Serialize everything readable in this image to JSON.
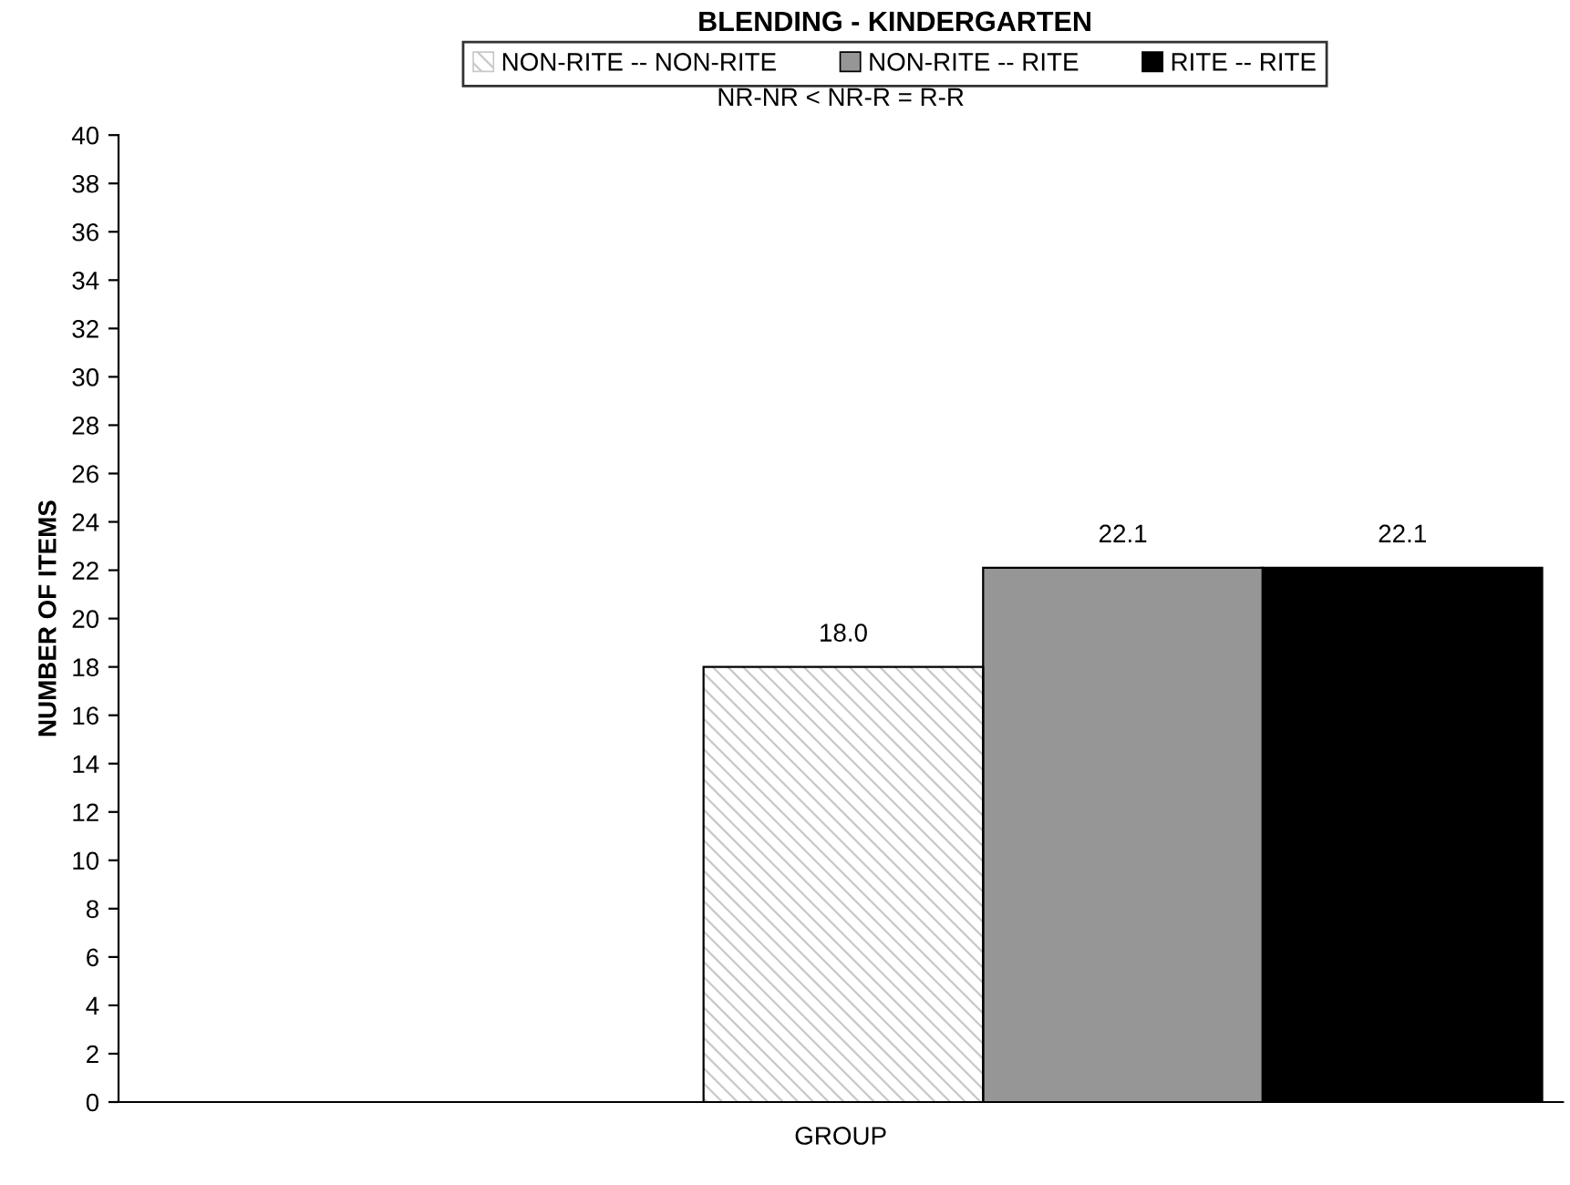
{
  "chart_data": {
    "type": "bar",
    "title": "BLENDING - KINDERGARTEN",
    "xlabel": "GROUP",
    "ylabel": "NUMBER OF ITEMS",
    "categories": [
      null
    ],
    "series": [
      {
        "name": "NON-RITE -- NON-RITE",
        "color": "#ffffff",
        "values": [
          18.0
        ]
      },
      {
        "name": "NON-RITE -- RITE",
        "color": "#969696",
        "values": [
          22.1
        ]
      },
      {
        "name": "RITE -- RITE",
        "color": "#000000",
        "values": [
          22.1
        ]
      }
    ],
    "value_labels": [
      [
        "18.0"
      ],
      [
        "22.1"
      ],
      [
        "22.1"
      ]
    ],
    "annotations": [
      "NR-NR < NR-R = R-R"
    ],
    "ylim": [
      0,
      40
    ],
    "yticks": [
      0,
      2,
      4,
      6,
      8,
      10,
      12,
      14,
      16,
      18,
      20,
      22,
      24,
      26,
      28,
      30,
      32,
      34,
      36,
      38,
      40
    ],
    "grid": false,
    "legend": "top"
  }
}
